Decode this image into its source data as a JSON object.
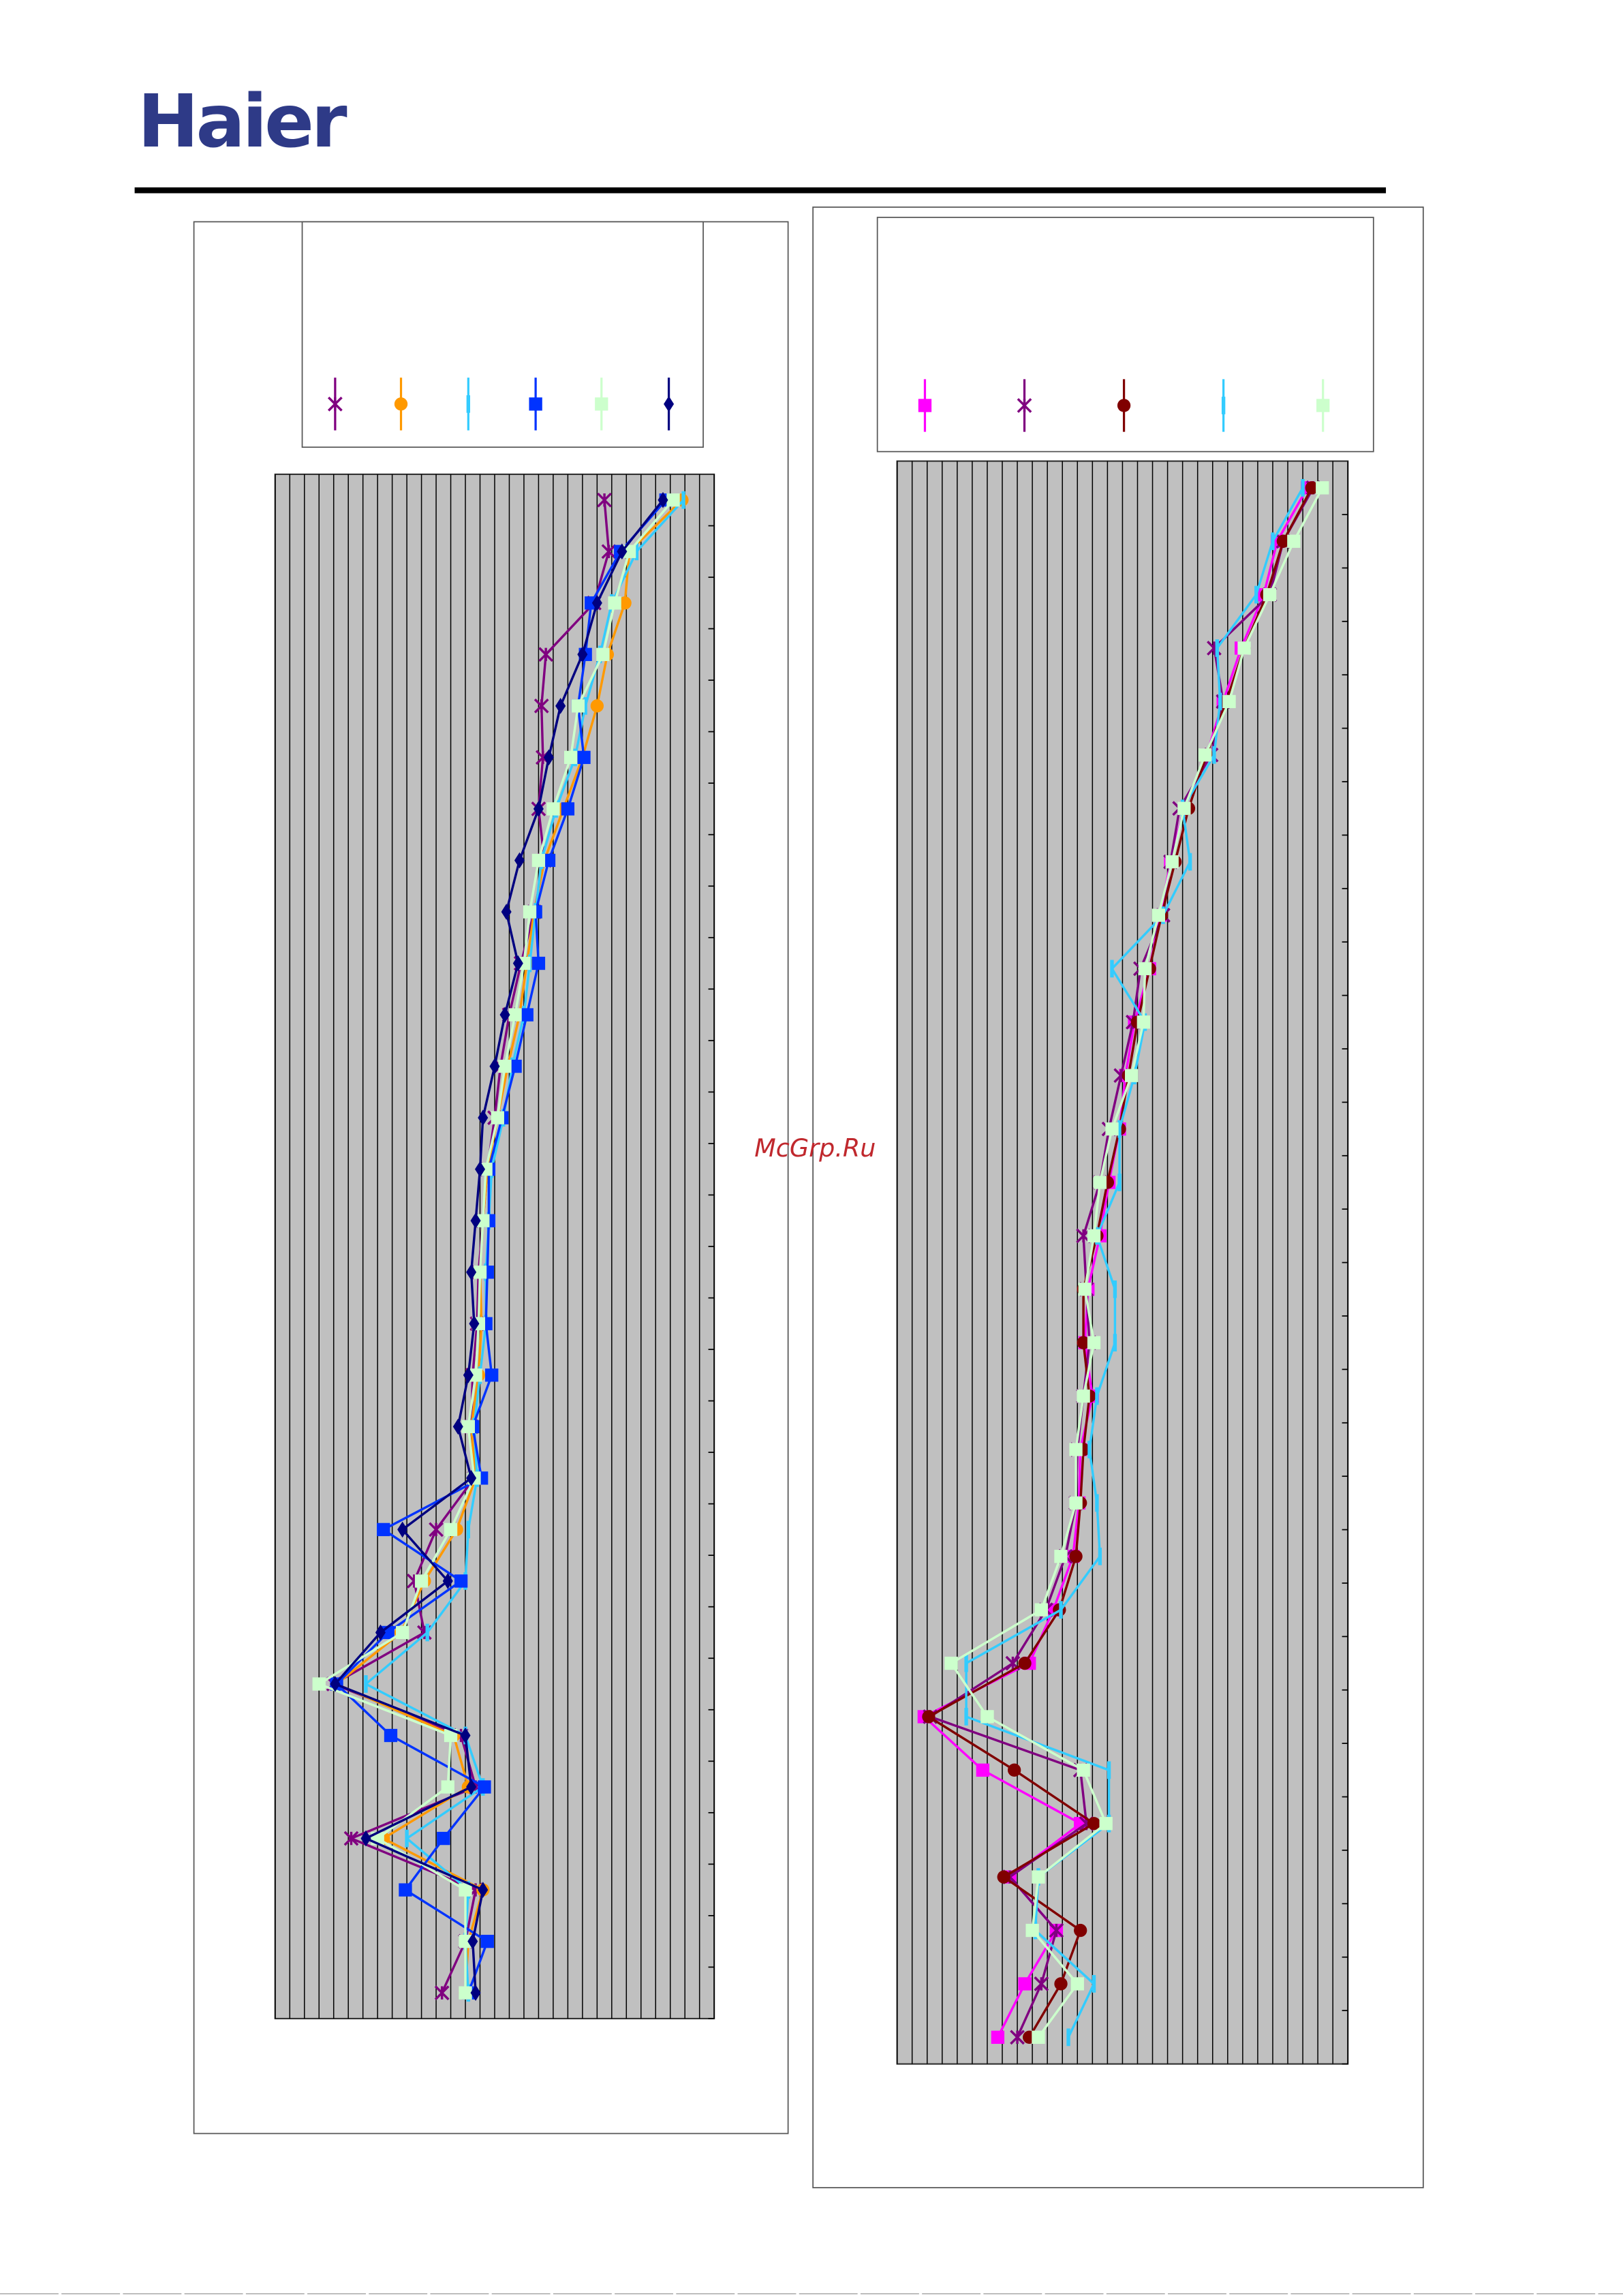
{
  "header": {
    "logo": "Haier"
  },
  "watermark": "McGrp.Ru",
  "chart_data": [
    {
      "type": "line",
      "orientation": "horizontal",
      "grid": true,
      "categories": [
        null,
        null,
        null,
        null,
        null,
        null,
        null,
        null,
        null,
        null,
        null,
        null,
        null,
        null,
        null,
        null,
        null,
        null,
        null,
        null,
        null,
        null,
        null,
        null,
        null,
        null,
        null,
        null,
        null,
        null
      ],
      "xlim": [
        0,
        30
      ],
      "xticks": [
        0,
        1,
        2,
        3,
        4,
        5,
        6,
        7,
        8,
        9,
        10,
        11,
        12,
        13,
        14,
        15,
        16,
        17,
        18,
        19,
        20,
        21,
        22,
        23,
        24,
        25,
        26,
        27,
        28,
        29,
        30
      ],
      "series": [
        {
          "color": "#800080",
          "marker": "star",
          "values": [
            22.5,
            22.8,
            21.8,
            18.5,
            18.2,
            18.3,
            18,
            18.4,
            17.7,
            16.8,
            16,
            15.4,
            15,
            14.5,
            14.2,
            13.9,
            13.8,
            13.5,
            13.4,
            13.6,
            11,
            9.5,
            10.2,
            4,
            12.7,
            13.7,
            5.2,
            13.7,
            13,
            11.4
          ]
        },
        {
          "color": "#ff9900",
          "marker": "circle",
          "values": [
            27.8,
            24.2,
            23.9,
            22.7,
            22,
            21,
            19.7,
            18.4,
            17.7,
            17.2,
            16.7,
            15.9,
            15.2,
            14.5,
            14.2,
            14,
            14.1,
            13.9,
            13.4,
            13.7,
            12.4,
            10.2,
            8.6,
            4.2,
            12.2,
            13.2,
            7.4,
            14.2,
            13.2,
            13
          ]
        },
        {
          "color": "#33ccff",
          "marker": "bar",
          "values": [
            27.9,
            24.7,
            23,
            22.2,
            21.2,
            20.5,
            19.2,
            18.2,
            17.8,
            17.4,
            17,
            16.2,
            15.6,
            14.8,
            14.6,
            14.4,
            14.4,
            14,
            13.6,
            13.8,
            13.2,
            13,
            10.4,
            6.2,
            13,
            14.2,
            9,
            13.2,
            13,
            13.2
          ]
        },
        {
          "color": "#0033ff",
          "marker": "square",
          "values": [
            26.7,
            23.6,
            21.6,
            21.2,
            20.7,
            21.1,
            20,
            18.7,
            17.8,
            18,
            17.2,
            16.4,
            15.5,
            14.6,
            14.6,
            14.5,
            14.4,
            14.8,
            13.5,
            14.1,
            7.4,
            12.7,
            7.7,
            4.2,
            7.9,
            14.3,
            11.5,
            8.9,
            14.5,
            13.2
          ]
        },
        {
          "color": "#ccffcc",
          "marker": "square",
          "values": [
            27.2,
            24.2,
            23.2,
            22.4,
            20.7,
            20.2,
            19,
            18,
            17.4,
            17,
            16.4,
            15.7,
            15.2,
            14.4,
            14.2,
            14,
            13.9,
            13.7,
            13.2,
            13.6,
            12,
            10,
            8.7,
            3,
            12,
            11.8,
            7,
            13,
            13,
            13
          ]
        },
        {
          "color": "#000080",
          "marker": "diamond",
          "values": [
            26.5,
            23.7,
            22,
            21,
            19.5,
            18.7,
            18,
            16.7,
            15.8,
            16.6,
            15.7,
            15,
            14.2,
            14,
            13.7,
            13.4,
            13.6,
            13.2,
            12.5,
            13.4,
            8.7,
            11.8,
            7.2,
            4.1,
            13,
            13.4,
            6.2,
            14.2,
            13.5,
            13.7
          ]
        }
      ]
    },
    {
      "type": "line",
      "orientation": "horizontal",
      "grid": true,
      "categories": [
        null,
        null,
        null,
        null,
        null,
        null,
        null,
        null,
        null,
        null,
        null,
        null,
        null,
        null,
        null,
        null,
        null,
        null,
        null,
        null,
        null,
        null,
        null,
        null,
        null,
        null,
        null,
        null,
        null,
        null
      ],
      "xlim": [
        0,
        30
      ],
      "xticks": [
        0,
        1,
        2,
        3,
        4,
        5,
        6,
        7,
        8,
        9,
        10,
        11,
        12,
        13,
        14,
        15,
        16,
        17,
        18,
        19,
        20,
        21,
        22,
        23,
        24,
        25,
        26,
        27,
        28,
        29,
        30
      ],
      "series": [
        {
          "color": "#ff00ff",
          "marker": "square",
          "values": [
            27.3,
            25.3,
            24.4,
            22.9,
            21.7,
            20.6,
            19.1,
            18.2,
            17.5,
            16.8,
            15.8,
            15.2,
            14.8,
            14.1,
            13.5,
            12.7,
            12.5,
            13,
            12.2,
            12.1,
            11.7,
            10.4,
            8.8,
            1.8,
            5.7,
            12.2,
            7.5,
            10.6,
            8.5,
            6.7
          ]
        },
        {
          "color": "#800080",
          "marker": "star",
          "values": [
            27.7,
            25.7,
            24.8,
            21.1,
            21.7,
            20.9,
            18.8,
            18.2,
            17.7,
            16.2,
            15.7,
            14.9,
            14.1,
            13.5,
            12.4,
            12.6,
            12.8,
            12.4,
            12,
            11.9,
            11.2,
            9.9,
            7.7,
            2.2,
            12.2,
            12.6,
            7.5,
            10.6,
            9.6,
            8
          ]
        },
        {
          "color": "#800000",
          "marker": "circle",
          "values": [
            27.6,
            25.7,
            24.6,
            23.1,
            21.9,
            20.6,
            19.4,
            18.5,
            17.6,
            16.8,
            16,
            15.4,
            14.8,
            14,
            13.3,
            12.4,
            12.4,
            12.8,
            12.4,
            12.2,
            11.9,
            10.8,
            8.5,
            2.1,
            7.8,
            13.1,
            7.1,
            12.2,
            10.9,
            8.8
          ]
        },
        {
          "color": "#33ccff",
          "marker": "bar",
          "values": [
            27,
            25,
            23.9,
            21.3,
            21.5,
            21.1,
            19,
            19.5,
            17.7,
            14.3,
            16.5,
            15.8,
            14.8,
            14.8,
            13.3,
            14.5,
            14.5,
            13.3,
            12.8,
            13.3,
            13.5,
            10.9,
            4.6,
            4.6,
            14.1,
            14.1,
            9.4,
            9.2,
            13.1,
            11.4
          ]
        },
        {
          "color": "#ccffcc",
          "marker": "square",
          "values": [
            28.3,
            26.4,
            24.8,
            23.1,
            22.1,
            20.5,
            19.1,
            18.3,
            17.4,
            16.5,
            16.4,
            15.6,
            14.3,
            13.5,
            13.1,
            12.5,
            13.1,
            12.4,
            11.9,
            11.9,
            10.9,
            9.6,
            3.6,
            6,
            12.4,
            13.9,
            9.4,
            9,
            12,
            9.4
          ]
        }
      ]
    }
  ]
}
